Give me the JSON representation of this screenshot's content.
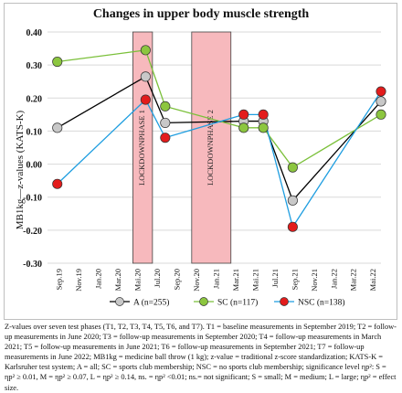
{
  "chart_data": {
    "type": "line",
    "title": "Changes in upper body muscle strength",
    "xlabel": "",
    "ylabel": "MB1kg—z-values (KATS-K)",
    "ylim": [
      -0.3,
      0.4
    ],
    "yticks": [
      "-0.30",
      "-0.20",
      "-0.10",
      "0.00",
      "0.10",
      "0.20",
      "0.30",
      "0.40"
    ],
    "xticks": [
      "Sep.19",
      "Nov.19",
      "Jan.20",
      "Mar.20",
      "Mai.20",
      "Jul.20",
      "Sep.20",
      "Nov.20",
      "Jan.21",
      "Mar.21",
      "Mai.21",
      "Jul.21",
      "Sep.21",
      "Nov.21",
      "Jan.22",
      "Mar.22",
      "Mai.22"
    ],
    "grid": true,
    "shaded_regions": [
      {
        "label": "LOCKDOWNPHASE 1",
        "x_start": 3.85,
        "x_end": 4.85
      },
      {
        "label": "LOCKDOWNPHASE 2",
        "x_start": 6.85,
        "x_end": 8.85
      }
    ],
    "series": [
      {
        "name": "A (n=255)",
        "color": "#000000",
        "marker": "#c8c8c8",
        "x": [
          0,
          4.5,
          5.5,
          9.5,
          10.5,
          12,
          16.5
        ],
        "values": [
          0.11,
          0.265,
          0.125,
          0.13,
          0.13,
          -0.11,
          0.19
        ]
      },
      {
        "name": "SC (n=117)",
        "color": "#7bc03a",
        "marker": "#8cc63f",
        "x": [
          0,
          4.5,
          5.5,
          9.5,
          10.5,
          12,
          16.5
        ],
        "values": [
          0.31,
          0.345,
          0.175,
          0.11,
          0.11,
          -0.01,
          0.15
        ]
      },
      {
        "name": "NSC (n=138)",
        "color": "#1f9ee0",
        "marker": "#e31c1c",
        "x": [
          0,
          4.5,
          5.5,
          9.5,
          10.5,
          12,
          16.5
        ],
        "values": [
          -0.06,
          0.195,
          0.08,
          0.15,
          0.15,
          -0.19,
          0.22
        ]
      }
    ],
    "legend_placement": "bottom"
  },
  "caption": "Z-values over seven test phases (T1, T2, T3, T4, T5, T6, and T7). T1 = baseline measurements in September 2019; T2 = follow-up measurements in June 2020; T3 = follow-up measurements in September 2020; T4 = follow-up measurements in March 2021; T5 = follow-up measurements in June 2021; T6 = follow-up measurements in September 2021; T7 = follow-up measurements in June 2022; MB1kg = medicine ball throw (1 kg); z-value = traditional z-score standardization; KATS-K = Karlsruher test system; A = all; SC = sports club membership; NSC = no sports club membership; significance level ηp²: S = ηp² ≥ 0.01, M = ηp² ≥ 0.07, L = ηp² ≥ 0.14, ns. = ηp² <0.01; ns.= not significant; S = small; M = medium; L = large; ηp² = effect size."
}
